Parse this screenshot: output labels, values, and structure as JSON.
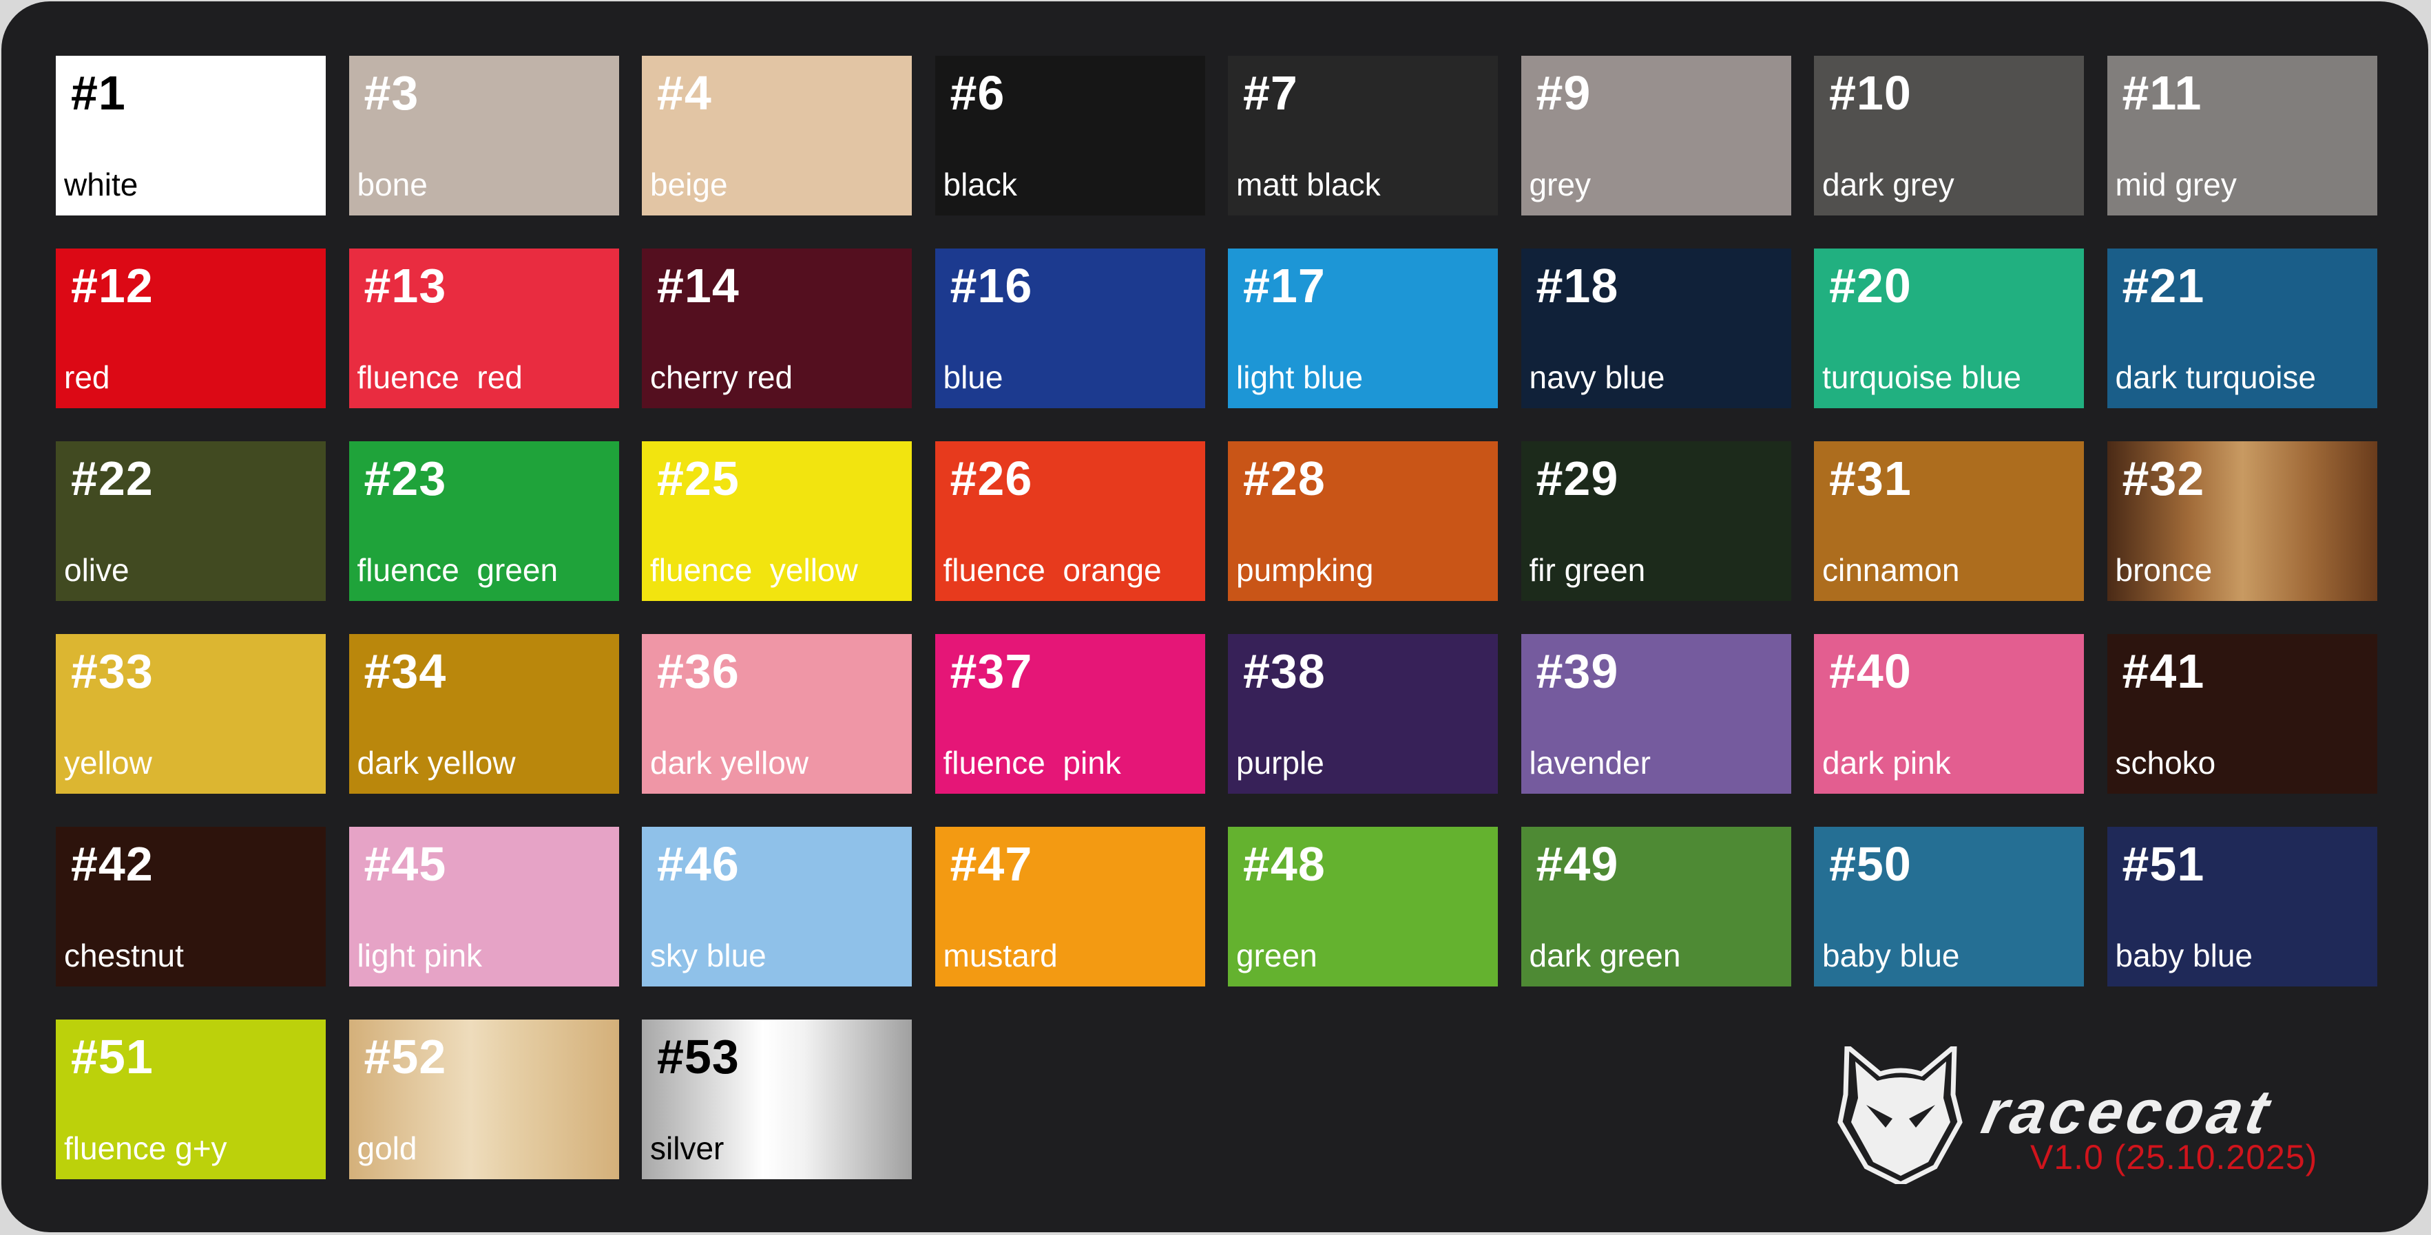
{
  "swatches": [
    {
      "num": "#1",
      "label": "white",
      "color": "#ffffff",
      "text": "dark"
    },
    {
      "num": "#3",
      "label": "bone",
      "color": "#c0b3a9"
    },
    {
      "num": "#4",
      "label": "beige",
      "color": "#e2c5a4"
    },
    {
      "num": "#6",
      "label": "black",
      "color": "#161616"
    },
    {
      "num": "#7",
      "label": "matt black",
      "color": "#272727"
    },
    {
      "num": "#9",
      "label": "grey",
      "color": "#98908e"
    },
    {
      "num": "#10",
      "label": "dark grey",
      "color": "#51504e"
    },
    {
      "num": "#11",
      "label": "mid grey",
      "color": "#817e7c"
    },
    {
      "num": "#12",
      "label": "red",
      "color": "#dc0915"
    },
    {
      "num": "#13",
      "label": "fluence  red",
      "color": "#e92c40"
    },
    {
      "num": "#14",
      "label": "cherry red",
      "color": "#540f1f"
    },
    {
      "num": "#16",
      "label": "blue",
      "color": "#1c3a8f"
    },
    {
      "num": "#17",
      "label": "light blue",
      "color": "#1d96d6"
    },
    {
      "num": "#18",
      "label": "navy blue",
      "color": "#102139"
    },
    {
      "num": "#20",
      "label": "turquoise blue",
      "color": "#21b080"
    },
    {
      "num": "#21",
      "label": "dark turquoise",
      "color": "#1a5e89"
    },
    {
      "num": "#22",
      "label": "olive",
      "color": "#414a21"
    },
    {
      "num": "#23",
      "label": "fluence  green",
      "color": "#1fa33a"
    },
    {
      "num": "#25",
      "label": "fluence  yellow",
      "color": "#f2e40f"
    },
    {
      "num": "#26",
      "label": "fluence  orange",
      "color": "#e73a1d"
    },
    {
      "num": "#28",
      "label": "pumpking",
      "color": "#c95517"
    },
    {
      "num": "#29",
      "label": "fir green",
      "color": "#1c2a1b"
    },
    {
      "num": "#31",
      "label": "cinnamon",
      "color": "#ad6d1e"
    },
    {
      "num": "#32",
      "label": "bronce",
      "color": "#8a5a2e",
      "gradient": "linear-gradient(90deg,#4a2a16,#a06a38 30%,#c89a62 50%,#a06a38 75%,#6a3c1c)"
    },
    {
      "num": "#33",
      "label": "yellow",
      "color": "#dcb631"
    },
    {
      "num": "#34",
      "label": "dark yellow",
      "color": "#ba870c"
    },
    {
      "num": "#36",
      "label": "dark yellow",
      "color": "#ef96a6"
    },
    {
      "num": "#37",
      "label": "fluence  pink",
      "color": "#e51677"
    },
    {
      "num": "#38",
      "label": "purple",
      "color": "#372158"
    },
    {
      "num": "#39",
      "label": "lavender",
      "color": "#755b9e"
    },
    {
      "num": "#40",
      "label": "dark pink",
      "color": "#e35e90"
    },
    {
      "num": "#41",
      "label": "schoko",
      "color": "#2c140e"
    },
    {
      "num": "#42",
      "label": "chestnut",
      "color": "#2d130c"
    },
    {
      "num": "#45",
      "label": "light pink",
      "color": "#e6a3c6"
    },
    {
      "num": "#46",
      "label": "sky blue",
      "color": "#8fc1e9"
    },
    {
      "num": "#47",
      "label": "mustard",
      "color": "#f39a12"
    },
    {
      "num": "#48",
      "label": "green",
      "color": "#64b22f"
    },
    {
      "num": "#49",
      "label": "dark green",
      "color": "#4e8a34"
    },
    {
      "num": "#50",
      "label": "baby blue",
      "color": "#256f94"
    },
    {
      "num": "#51",
      "label": "baby blue",
      "color": "#1f2958"
    },
    {
      "num": "#51",
      "label": "fluence g+y",
      "color": "#bcd10b"
    },
    {
      "num": "#52",
      "label": "gold",
      "color": "#dcc08f",
      "gradient": "linear-gradient(90deg,#d4b07a,#eedcbc 45%,#e6cfa6 60%,#d4b07a)"
    },
    {
      "num": "#53",
      "label": "silver",
      "color": "#c8c8c8",
      "gradient": "linear-gradient(90deg,#a8a8a8,#ffffff 45%,#f2f2f2 60%,#a0a0a0)",
      "text": "dark"
    }
  ],
  "brand": {
    "name": "racecoat",
    "version": "V1.0 (25.10.2025)",
    "version_color": "#d0141c",
    "logo_icon": "wolf-head-icon"
  }
}
